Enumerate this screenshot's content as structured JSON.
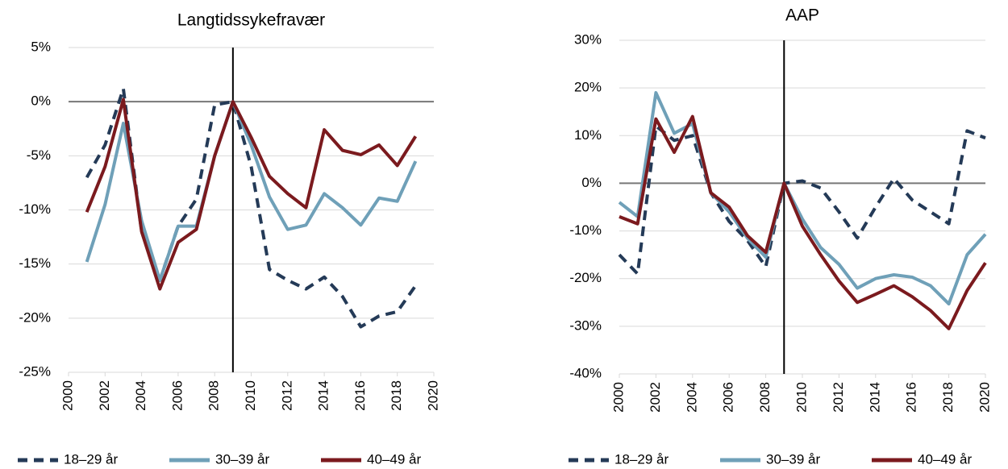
{
  "chart_data": [
    {
      "type": "line",
      "title": "Langtidssykefravær",
      "x": [
        2001,
        2002,
        2003,
        2004,
        2005,
        2006,
        2007,
        2008,
        2009,
        2010,
        2011,
        2012,
        2013,
        2014,
        2015,
        2016,
        2017,
        2018,
        2019
      ],
      "series": [
        {
          "name": "18–29 år",
          "color": "#243a57",
          "style": "dashed",
          "values": [
            -7,
            -4,
            1.2,
            -12,
            -16.5,
            -11.5,
            -9,
            -0.3,
            0,
            -6,
            -15.5,
            -16.5,
            -17.3,
            -16.2,
            -18,
            -20.8,
            -19.8,
            -19.4,
            -17
          ]
        },
        {
          "name": "30–39 år",
          "color": "#6fa0b8",
          "style": "solid",
          "values": [
            -14.8,
            -9.5,
            -2,
            -11,
            -16.5,
            -11.5,
            -11.5,
            -5,
            0,
            -4,
            -8.8,
            -11.8,
            -11.4,
            -8.5,
            -9.8,
            -11.4,
            -8.9,
            -9.2,
            -5.5
          ]
        },
        {
          "name": "40–49 år",
          "color": "#7b1a1e",
          "style": "solid",
          "values": [
            -10.2,
            -6,
            0.2,
            -12,
            -17.3,
            -13,
            -11.8,
            -5,
            0,
            -3.3,
            -6.9,
            -8.5,
            -9.8,
            -2.6,
            -4.5,
            -4.9,
            -4,
            -5.9,
            -3.2
          ]
        }
      ],
      "xlim": [
        2000,
        2020
      ],
      "xticks": [
        2000,
        2002,
        2004,
        2006,
        2008,
        2010,
        2012,
        2014,
        2016,
        2018,
        2020
      ],
      "ylim": [
        -25,
        5
      ],
      "yticks": [
        {
          "value": -25,
          "label": "-25%"
        },
        {
          "value": -20,
          "label": "-20%"
        },
        {
          "value": -15,
          "label": "-15%"
        },
        {
          "value": -10,
          "label": "-10%"
        },
        {
          "value": -5,
          "label": "-5%"
        },
        {
          "value": 0,
          "label": "0%"
        },
        {
          "value": 5,
          "label": "5%"
        }
      ],
      "grid": true,
      "reference_x": 2009,
      "legend": "bottom"
    },
    {
      "type": "line",
      "title": "AAP",
      "x": [
        2000,
        2001,
        2002,
        2003,
        2004,
        2005,
        2006,
        2007,
        2008,
        2009,
        2010,
        2011,
        2012,
        2013,
        2014,
        2015,
        2016,
        2017,
        2018,
        2019,
        2020
      ],
      "series": [
        {
          "name": "18–29 år",
          "color": "#243a57",
          "style": "dashed",
          "values": [
            -15,
            -19,
            12,
            9,
            10,
            -2,
            -8,
            -12,
            -17.5,
            0,
            0.5,
            -1,
            -6,
            -11.5,
            -5,
            1,
            -3.5,
            -6,
            -8.5,
            11,
            9.5
          ]
        },
        {
          "name": "30–39 år",
          "color": "#6fa0b8",
          "style": "solid",
          "values": [
            -4,
            -7,
            19,
            10.5,
            12.5,
            -2,
            -6,
            -11.5,
            -15.5,
            0,
            -7.5,
            -13.5,
            -17,
            -22,
            -20,
            -19.2,
            -19.7,
            -21.5,
            -25.3,
            -15,
            -10.7
          ]
        },
        {
          "name": "40–49 år",
          "color": "#7b1a1e",
          "style": "solid",
          "values": [
            -7,
            -8.5,
            13.5,
            6.5,
            14,
            -2,
            -5,
            -11,
            -14.5,
            0,
            -9,
            -15,
            -20.5,
            -25,
            -23.3,
            -21.5,
            -23.8,
            -26.7,
            -30.5,
            -22.5,
            -16.7
          ]
        }
      ],
      "xlim": [
        2000,
        2020
      ],
      "xticks": [
        2000,
        2002,
        2004,
        2006,
        2008,
        2010,
        2012,
        2014,
        2016,
        2018,
        2020
      ],
      "ylim": [
        -40,
        30
      ],
      "yticks": [
        {
          "value": -40,
          "label": "-40%"
        },
        {
          "value": -30,
          "label": "-30%"
        },
        {
          "value": -20,
          "label": "-20%"
        },
        {
          "value": -10,
          "label": "-10%"
        },
        {
          "value": 0,
          "label": "0%"
        },
        {
          "value": 10,
          "label": "10%"
        },
        {
          "value": 20,
          "label": "20%"
        },
        {
          "value": 30,
          "label": "30%"
        }
      ],
      "grid": true,
      "reference_x": 2009,
      "legend": "bottom"
    }
  ]
}
